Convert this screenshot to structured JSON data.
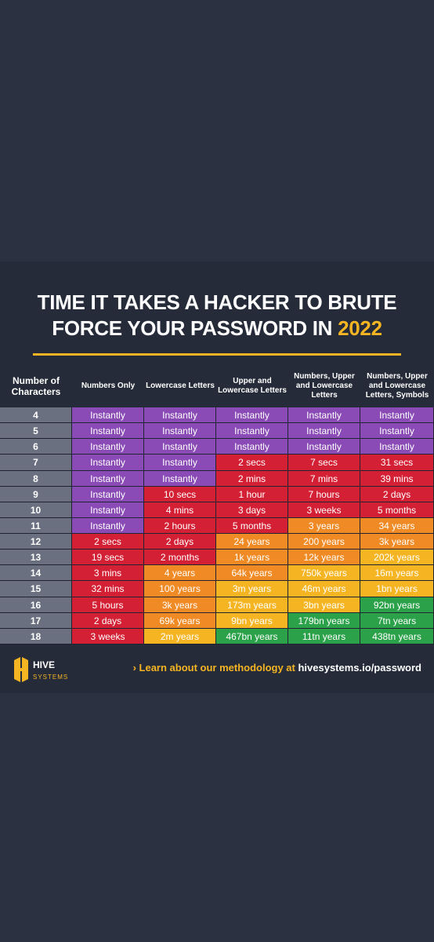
{
  "title": {
    "line1": "TIME IT TAKES A HACKER TO BRUTE",
    "line2_text": "FORCE YOUR PASSWORD IN ",
    "line2_year": "2022"
  },
  "brand": {
    "logo_text_top": "HIVE",
    "logo_text_bottom": "SYSTEMS",
    "link_arrow": "›",
    "link_lead": "Learn about our methodology at ",
    "link_url": "hivesystems.io/password",
    "accent": "#f5b523"
  },
  "colors": {
    "rowhead": "#6b7080",
    "purple": "#8a4bb6",
    "red": "#d42034",
    "orange": "#f08a24",
    "yellow": "#f5b523",
    "green": "#2ba24a"
  },
  "chart_data": {
    "type": "table",
    "title": "TIME IT TAKES A HACKER TO BRUTE FORCE YOUR PASSWORD IN 2022",
    "columns": [
      "Number of Characters",
      "Numbers Only",
      "Lowercase Letters",
      "Upper and Lowercase Letters",
      "Numbers, Upper and Lowercase Letters",
      "Numbers, Upper and Lowercase Letters, Symbols"
    ],
    "rows": [
      {
        "chars": "4",
        "values": [
          "Instantly",
          "Instantly",
          "Instantly",
          "Instantly",
          "Instantly"
        ],
        "colors": [
          "purple",
          "purple",
          "purple",
          "purple",
          "purple"
        ]
      },
      {
        "chars": "5",
        "values": [
          "Instantly",
          "Instantly",
          "Instantly",
          "Instantly",
          "Instantly"
        ],
        "colors": [
          "purple",
          "purple",
          "purple",
          "purple",
          "purple"
        ]
      },
      {
        "chars": "6",
        "values": [
          "Instantly",
          "Instantly",
          "Instantly",
          "Instantly",
          "Instantly"
        ],
        "colors": [
          "purple",
          "purple",
          "purple",
          "purple",
          "purple"
        ]
      },
      {
        "chars": "7",
        "values": [
          "Instantly",
          "Instantly",
          "2 secs",
          "7 secs",
          "31 secs"
        ],
        "colors": [
          "purple",
          "purple",
          "red",
          "red",
          "red"
        ]
      },
      {
        "chars": "8",
        "values": [
          "Instantly",
          "Instantly",
          "2 mins",
          "7 mins",
          "39 mins"
        ],
        "colors": [
          "purple",
          "purple",
          "red",
          "red",
          "red"
        ]
      },
      {
        "chars": "9",
        "values": [
          "Instantly",
          "10 secs",
          "1 hour",
          "7 hours",
          "2 days"
        ],
        "colors": [
          "purple",
          "red",
          "red",
          "red",
          "red"
        ]
      },
      {
        "chars": "10",
        "values": [
          "Instantly",
          "4 mins",
          "3 days",
          "3 weeks",
          "5 months"
        ],
        "colors": [
          "purple",
          "red",
          "red",
          "red",
          "red"
        ]
      },
      {
        "chars": "11",
        "values": [
          "Instantly",
          "2 hours",
          "5 months",
          "3 years",
          "34 years"
        ],
        "colors": [
          "purple",
          "red",
          "red",
          "orange",
          "orange"
        ]
      },
      {
        "chars": "12",
        "values": [
          "2 secs",
          "2 days",
          "24 years",
          "200 years",
          "3k years"
        ],
        "colors": [
          "red",
          "red",
          "orange",
          "orange",
          "orange"
        ]
      },
      {
        "chars": "13",
        "values": [
          "19 secs",
          "2 months",
          "1k years",
          "12k years",
          "202k years"
        ],
        "colors": [
          "red",
          "red",
          "orange",
          "orange",
          "yellow"
        ]
      },
      {
        "chars": "14",
        "values": [
          "3 mins",
          "4 years",
          "64k years",
          "750k years",
          "16m years"
        ],
        "colors": [
          "red",
          "orange",
          "orange",
          "yellow",
          "yellow"
        ]
      },
      {
        "chars": "15",
        "values": [
          "32 mins",
          "100 years",
          "3m years",
          "46m years",
          "1bn years"
        ],
        "colors": [
          "red",
          "orange",
          "yellow",
          "yellow",
          "yellow"
        ]
      },
      {
        "chars": "16",
        "values": [
          "5 hours",
          "3k years",
          "173m years",
          "3bn years",
          "92bn years"
        ],
        "colors": [
          "red",
          "orange",
          "yellow",
          "yellow",
          "green"
        ]
      },
      {
        "chars": "17",
        "values": [
          "2 days",
          "69k years",
          "9bn years",
          "179bn years",
          "7tn years"
        ],
        "colors": [
          "red",
          "orange",
          "yellow",
          "green",
          "green"
        ]
      },
      {
        "chars": "18",
        "values": [
          "3 weeks",
          "2m years",
          "467bn years",
          "11tn years",
          "438tn years"
        ],
        "colors": [
          "red",
          "yellow",
          "green",
          "green",
          "green"
        ]
      }
    ]
  }
}
